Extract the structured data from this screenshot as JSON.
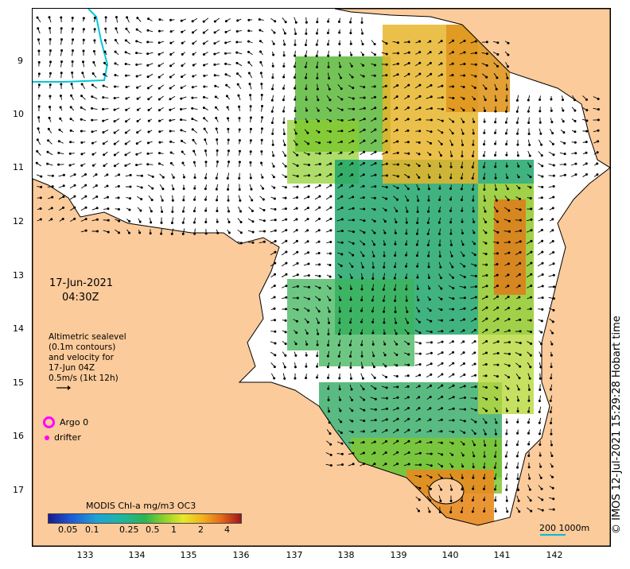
{
  "map": {
    "date": "17-Jun-2021",
    "time": "04:30Z",
    "lat_labels": [
      "9",
      "10",
      "11",
      "12",
      "13",
      "14",
      "15",
      "16",
      "17"
    ],
    "lon_labels": [
      "133",
      "134",
      "135",
      "136",
      "137",
      "138",
      "139",
      "140",
      "141",
      "142"
    ],
    "legend_lines": [
      "Altimetric sealevel",
      "(0.1m contours)",
      "and velocity for",
      "17-Jun 04Z",
      "0.5m/s (1kt 12h)"
    ],
    "argo_label": "Argo 0",
    "drifter_label": "drifter",
    "colorbar_title": "MODIS Chl-a mg/m3 OC3",
    "colorbar_ticks": [
      "0.05",
      "0.1",
      "0.25",
      "0.5",
      "1",
      "2",
      "4"
    ],
    "scale_label": "200  1000m",
    "credit": "© IMOS 12-Jul-2021 15:29:28 Hobart time",
    "colors": {
      "land": "#fbcb9b",
      "ocean": "#ffffff",
      "argo": "#ff00ff",
      "isobath": "#00c8d6"
    }
  }
}
